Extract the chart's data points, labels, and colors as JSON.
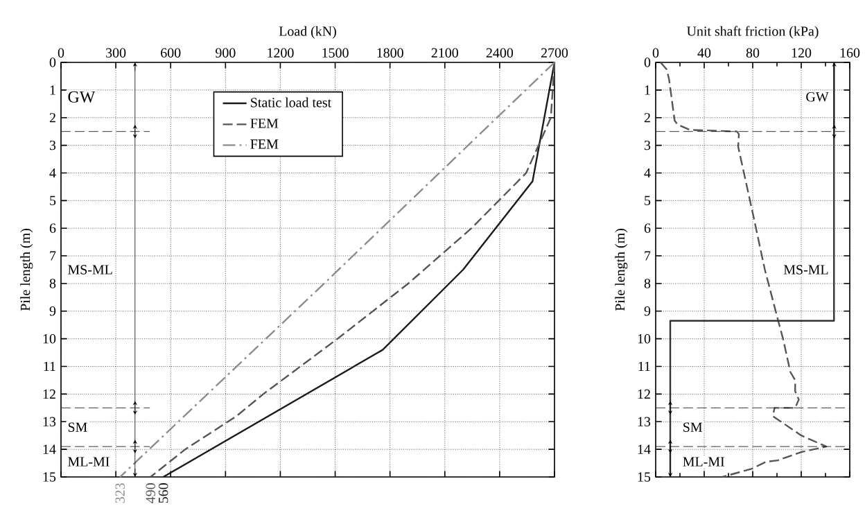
{
  "chart_data": [
    {
      "type": "line",
      "xlabel": "Load (kN)",
      "ylabel": "Pile length (m)",
      "xlim": [
        0,
        2700
      ],
      "xticks": [
        0,
        300,
        600,
        900,
        1200,
        1500,
        1800,
        2100,
        2400,
        2700
      ],
      "ylim": [
        15,
        0
      ],
      "yticks": [
        0,
        1,
        2,
        3,
        4,
        5,
        6,
        7,
        8,
        9,
        10,
        11,
        12,
        13,
        14,
        15
      ],
      "grid": true,
      "legend": "top",
      "marker": "none",
      "series": [
        {
          "name": "Static load test",
          "color": "#1a1a1a",
          "line_style": "solid",
          "x": [
            2700,
            2580,
            2200,
            1760,
            560
          ],
          "values": [
            0,
            4.3,
            7.5,
            10.4,
            15
          ]
        },
        {
          "name": "FEM",
          "color": "#555555",
          "line_style": "dashed",
          "x": [
            2700,
            2680,
            2545,
            2246,
            1900,
            1513,
            1107,
            960,
            680,
            490
          ],
          "values": [
            0,
            2,
            4,
            6,
            8,
            10,
            12,
            12.8,
            14,
            15
          ]
        },
        {
          "name": "FEM",
          "color": "#8c8c8c",
          "line_style": "dashdot",
          "x": [
            2700,
            1440,
            323
          ],
          "values": [
            0,
            8,
            15
          ]
        }
      ],
      "ref_lines": [
        {
          "axis": "y",
          "value": 2.5,
          "color": "#000000",
          "line_style": "dashed"
        },
        {
          "axis": "y",
          "value": 12.5,
          "color": "#000000",
          "line_style": "dashed"
        },
        {
          "axis": "y",
          "value": 13.9,
          "color": "#000000",
          "line_style": "dashed"
        },
        {
          "axis": "x",
          "value": 405,
          "color": "#000000",
          "line_style": "solid"
        }
      ],
      "annotations": [
        "GW",
        "MS-ML",
        "SM",
        "ML-MI",
        {
          "text": "323",
          "x": 323,
          "y": 15
        },
        {
          "text": "490",
          "x": 490,
          "y": 15
        },
        {
          "text": "560",
          "x": 560,
          "y": 15
        }
      ]
    },
    {
      "type": "line",
      "xlabel": "Unit shaft friction (kPa)",
      "ylabel": "Pile length (m)",
      "xlim": [
        0,
        160
      ],
      "xticks": [
        0,
        40,
        80,
        120,
        160
      ],
      "ylim": [
        15,
        0
      ],
      "yticks": [
        0,
        1,
        2,
        3,
        4,
        5,
        6,
        7,
        8,
        9,
        10,
        11,
        12,
        13,
        14,
        15
      ],
      "grid": true,
      "marker": "none",
      "series": [
        {
          "color": "#555555",
          "line_style": "dashed",
          "x": [
            4,
            9,
            11,
            15.6,
            18,
            28,
            67,
            68.6,
            68,
            80.6,
            90,
            101,
            105,
            111,
            115,
            115,
            118,
            115,
            98,
            96.6,
            120,
            140.6,
            120,
            100.6,
            91,
            79.4,
            55
          ],
          "values": [
            0,
            0.25,
            0.6,
            2.1,
            2.25,
            2.44,
            2.5,
            2.6,
            3.05,
            5.57,
            7.5,
            9.35,
            10,
            11.2,
            11.5,
            11.9,
            12.2,
            12.5,
            12.5,
            12.8,
            13.5,
            13.9,
            14.1,
            14.4,
            14.45,
            14.7,
            15
          ]
        },
        {
          "color": "#333333",
          "line_style": "solid",
          "x": [
            147,
            147,
            12,
            12
          ],
          "values": [
            0,
            9.35,
            9.35,
            15
          ]
        }
      ],
      "ref_lines": [
        {
          "axis": "y",
          "value": 2.5,
          "color": "#000000",
          "line_style": "dashed"
        },
        {
          "axis": "y",
          "value": 12.5,
          "color": "#000000",
          "line_style": "dashed"
        },
        {
          "axis": "y",
          "value": 13.9,
          "color": "#000000",
          "line_style": "dashed"
        }
      ],
      "annotations": [
        "GW",
        "MS-ML",
        "SM",
        "ML-MI"
      ]
    }
  ]
}
